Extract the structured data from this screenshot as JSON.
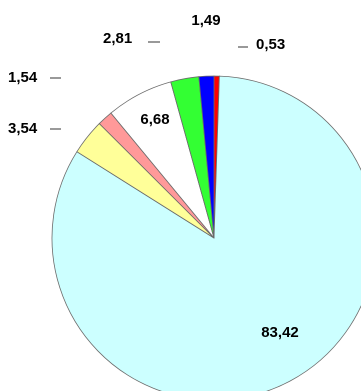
{
  "chart_data": {
    "type": "pie",
    "start_angle_deg": 0,
    "direction": "clockwise",
    "slices": [
      {
        "label": "0,53",
        "value": 0.53,
        "color": "#ff0000"
      },
      {
        "label": "83,42",
        "value": 83.42,
        "color": "#ccffff"
      },
      {
        "label": "3,54",
        "value": 3.54,
        "color": "#ffff99"
      },
      {
        "label": "1,54",
        "value": 1.54,
        "color": "#ff9999"
      },
      {
        "label": "6,68",
        "value": 6.68,
        "color": "#ffffff"
      },
      {
        "label": "2,81",
        "value": 2.81,
        "color": "#33ff33"
      },
      {
        "label": "1,49",
        "value": 1.49,
        "color": "#0000ff"
      }
    ]
  }
}
